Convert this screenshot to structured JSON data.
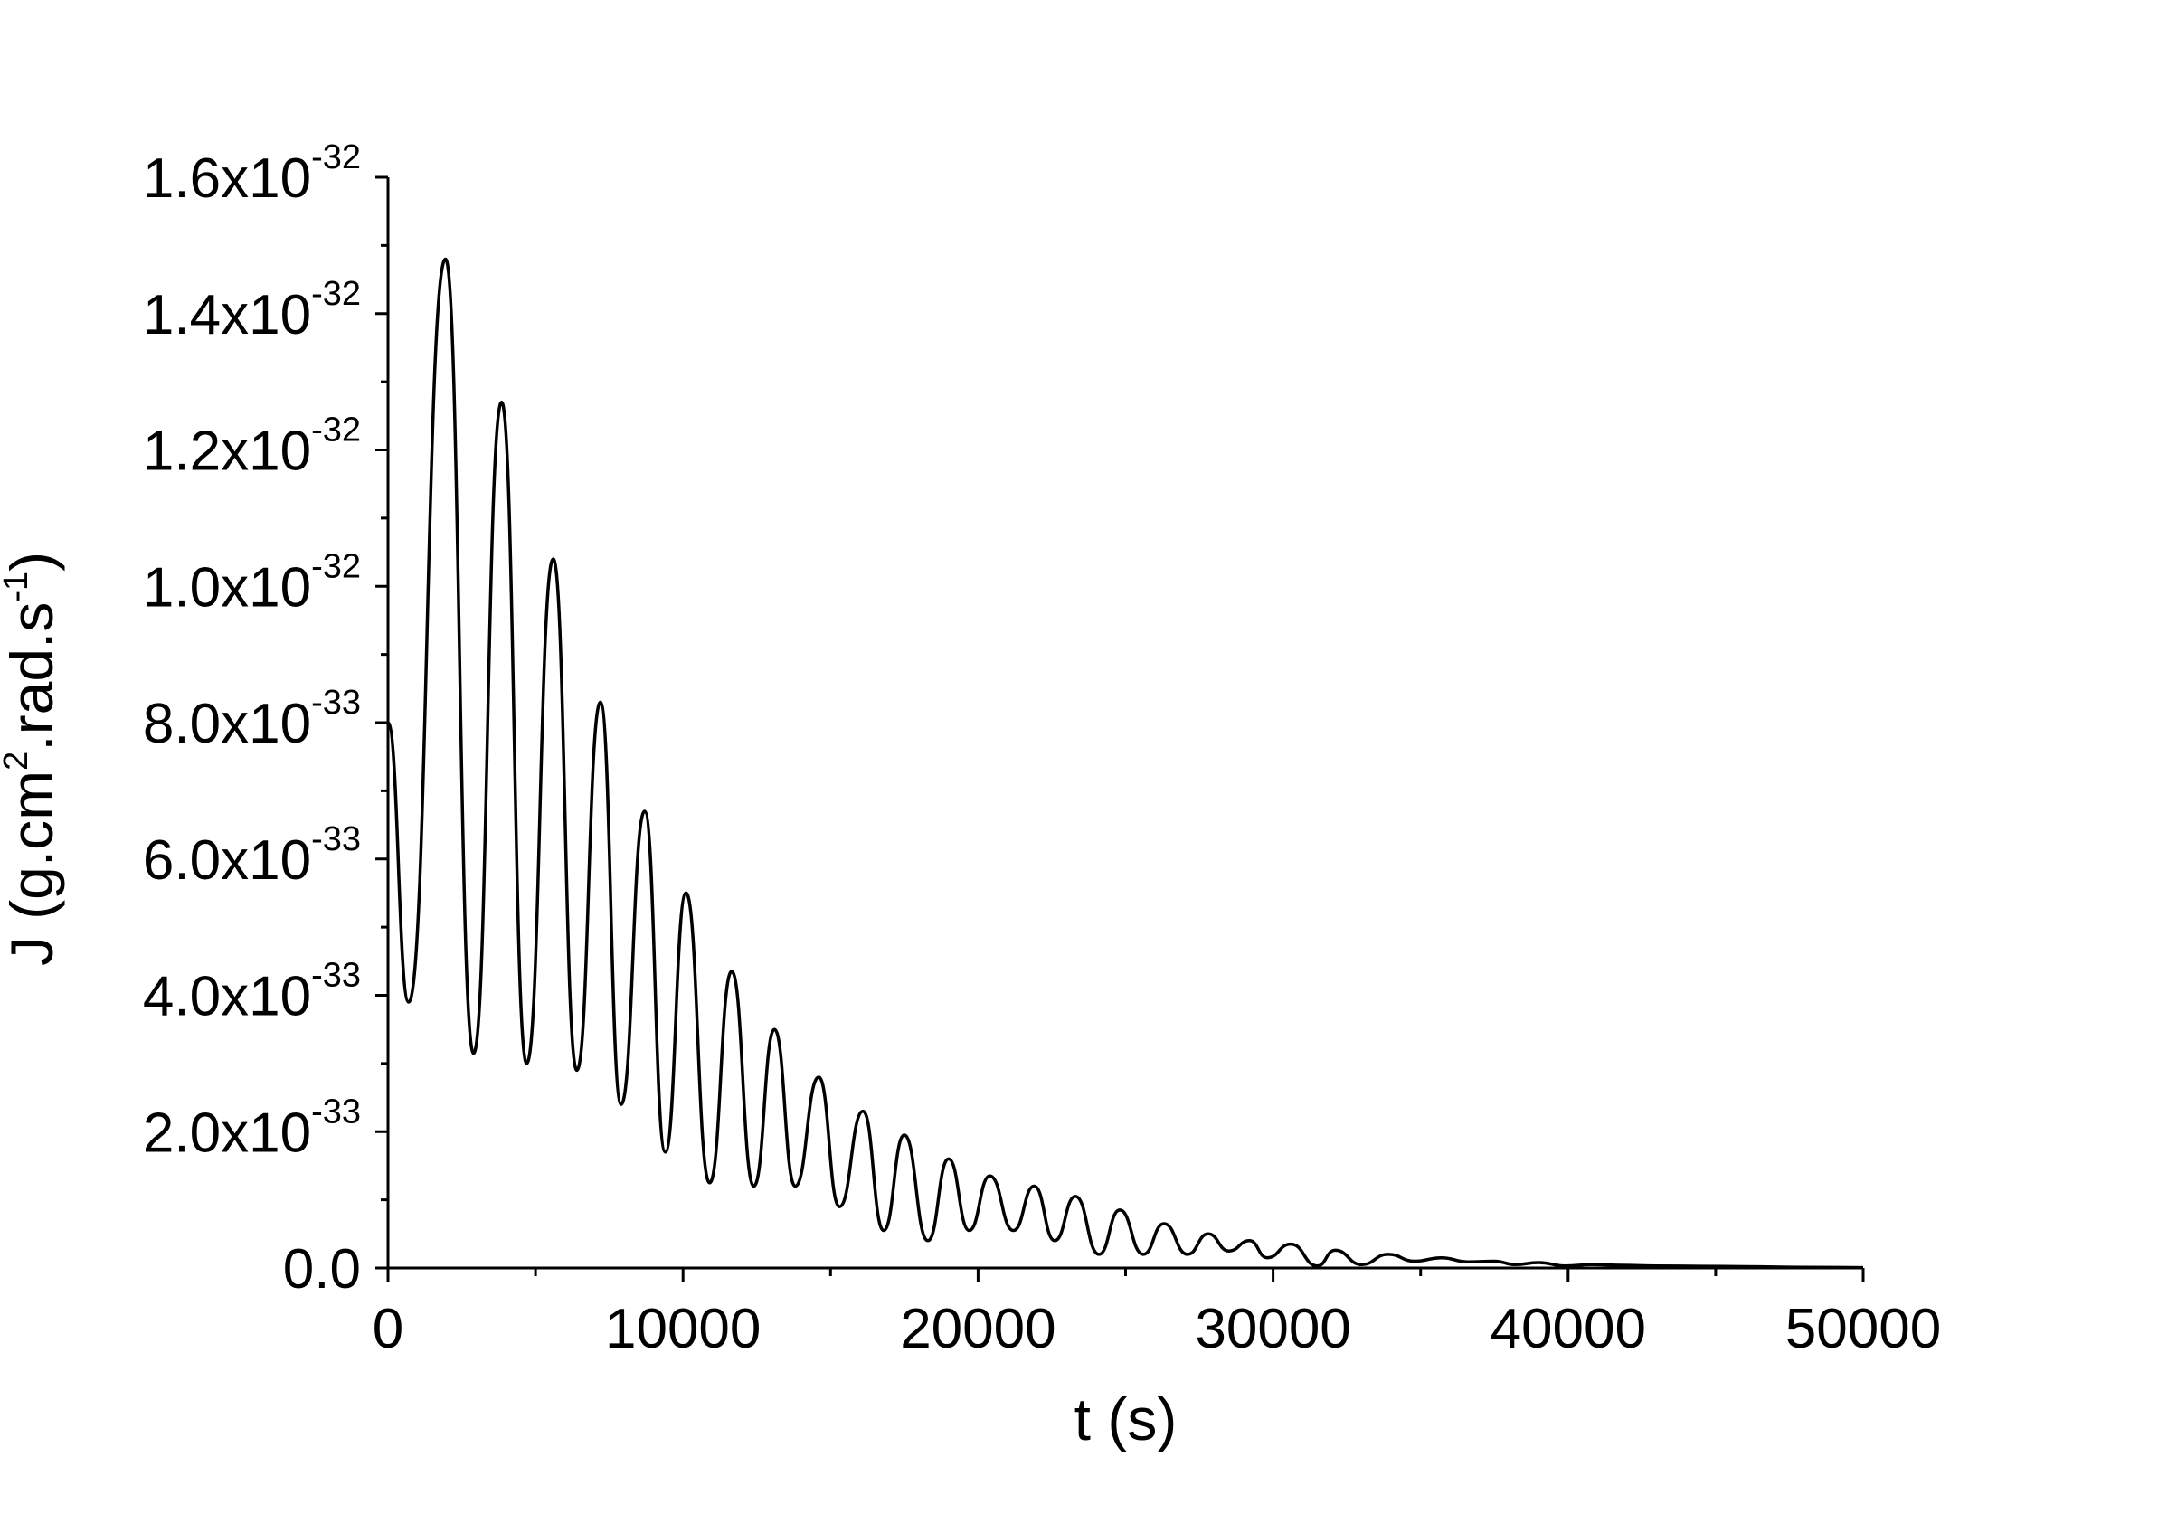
{
  "chart_data": {
    "type": "line",
    "title": "",
    "xlabel": "t (s)",
    "ylabel_parts": [
      "J (g.cm",
      "2",
      ".rad.s",
      "-1",
      ")"
    ],
    "xlim": [
      0,
      50000
    ],
    "ylim": [
      0,
      1.6e-32
    ],
    "x_ticks": [
      {
        "value": 0,
        "label": "0"
      },
      {
        "value": 10000,
        "label": "10000"
      },
      {
        "value": 20000,
        "label": "20000"
      },
      {
        "value": 30000,
        "label": "30000"
      },
      {
        "value": 40000,
        "label": "40000"
      },
      {
        "value": 50000,
        "label": "50000"
      }
    ],
    "y_ticks": [
      {
        "value": 0,
        "mant": "0.0",
        "exp": ""
      },
      {
        "value": 2e-33,
        "mant": "2.0x10",
        "exp": "-33"
      },
      {
        "value": 4e-33,
        "mant": "4.0x10",
        "exp": "-33"
      },
      {
        "value": 6e-33,
        "mant": "6.0x10",
        "exp": "-33"
      },
      {
        "value": 8e-33,
        "mant": "8.0x10",
        "exp": "-33"
      },
      {
        "value": 1e-32,
        "mant": "1.0x10",
        "exp": "-32"
      },
      {
        "value": 1.2e-32,
        "mant": "1.2x10",
        "exp": "-32"
      },
      {
        "value": 1.4e-32,
        "mant": "1.4x10",
        "exp": "-32"
      },
      {
        "value": 1.6e-32,
        "mant": "1.6x10",
        "exp": "-32"
      }
    ],
    "grid": false,
    "legend": "none",
    "line_color": "#000000",
    "series": [
      {
        "name": "",
        "x": [
          0,
          700,
          1950,
          2900,
          3850,
          4700,
          5600,
          6400,
          7200,
          7900,
          8700,
          9400,
          10100,
          10900,
          11650,
          12400,
          13100,
          13800,
          14600,
          15300,
          16100,
          16800,
          17500,
          18300,
          19000,
          19700,
          20400,
          21200,
          21900,
          22600,
          23300,
          24100,
          24800,
          25600,
          26300,
          27100,
          27800,
          28500,
          29200,
          29800,
          30600,
          31500,
          32100,
          33000,
          33900,
          34800,
          35700,
          36600,
          37500,
          38200,
          39000,
          39900,
          40800,
          41800,
          43000,
          44500,
          46000,
          48000,
          50000
        ],
        "y": [
          8e-33,
          3.9e-33,
          1.48e-32,
          3.15e-33,
          1.27e-32,
          3e-33,
          1.04e-32,
          2.9e-33,
          8.3e-33,
          2.4e-33,
          6.7e-33,
          1.7e-33,
          5.5e-33,
          1.25e-33,
          4.35e-33,
          1.2e-33,
          3.5e-33,
          1.2e-33,
          2.8e-33,
          9e-34,
          2.3e-33,
          5.5e-34,
          1.95e-33,
          4e-34,
          1.6e-33,
          5.5e-34,
          1.35e-33,
          5.5e-34,
          1.2e-33,
          4e-34,
          1.05e-33,
          2e-34,
          8.5e-34,
          2e-34,
          6.5e-34,
          2e-34,
          5e-34,
          2.5e-34,
          4e-34,
          1.5e-34,
          3.5e-34,
          3e-35,
          2.6e-34,
          5e-35,
          2e-34,
          1e-34,
          1.5e-34,
          9e-35,
          1e-34,
          5e-35,
          8e-35,
          3e-35,
          5e-35,
          4e-35,
          3e-35,
          2.5e-35,
          2e-35,
          1e-35,
          5e-36
        ]
      }
    ]
  }
}
